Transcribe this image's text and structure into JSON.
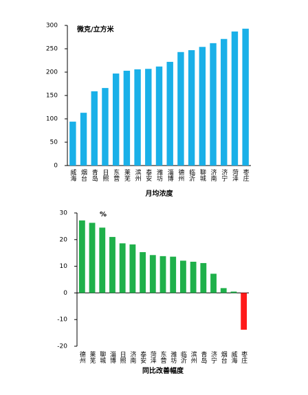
{
  "chart_data": [
    {
      "type": "bar",
      "annotation": "微克/立方米",
      "xlabel": "月均浓度",
      "categories": [
        "威海",
        "烟台",
        "青岛",
        "日照",
        "东营",
        "莱芜",
        "滨州",
        "泰安",
        "潍坊",
        "淄博",
        "德州",
        "临沂",
        "聊城",
        "济南",
        "济宁",
        "菏泽",
        "枣庄"
      ],
      "values": [
        94,
        113,
        159,
        166,
        197,
        203,
        206,
        207,
        212,
        222,
        243,
        247,
        254,
        262,
        271,
        287,
        293
      ],
      "color": "#1ab0e8",
      "ylim": [
        0,
        300
      ],
      "yticks": [
        0,
        50,
        100,
        150,
        200,
        250,
        300
      ]
    },
    {
      "type": "bar",
      "annotation": "%",
      "xlabel": "同比改善幅度",
      "categories": [
        "德州",
        "莱芜",
        "聊城",
        "淄博",
        "日照",
        "济南",
        "泰安",
        "菏泽",
        "东营",
        "潍坊",
        "临沂",
        "滨州",
        "青岛",
        "济宁",
        "烟台",
        "威海",
        "枣庄"
      ],
      "values": [
        27.2,
        26.3,
        24.5,
        21,
        18.6,
        18.2,
        15.3,
        14.2,
        13.8,
        13.6,
        12.1,
        11.7,
        11.2,
        7.2,
        1.8,
        0.5,
        -13.8
      ],
      "colors": [
        "#1fb04a",
        "#1fb04a",
        "#1fb04a",
        "#1fb04a",
        "#1fb04a",
        "#1fb04a",
        "#1fb04a",
        "#1fb04a",
        "#1fb04a",
        "#1fb04a",
        "#1fb04a",
        "#1fb04a",
        "#1fb04a",
        "#1fb04a",
        "#1fb04a",
        "#1fb04a",
        "#ff1a1a"
      ],
      "ylim": [
        -20,
        30
      ],
      "yticks": [
        -20,
        -10,
        0,
        10,
        20,
        30
      ]
    }
  ]
}
